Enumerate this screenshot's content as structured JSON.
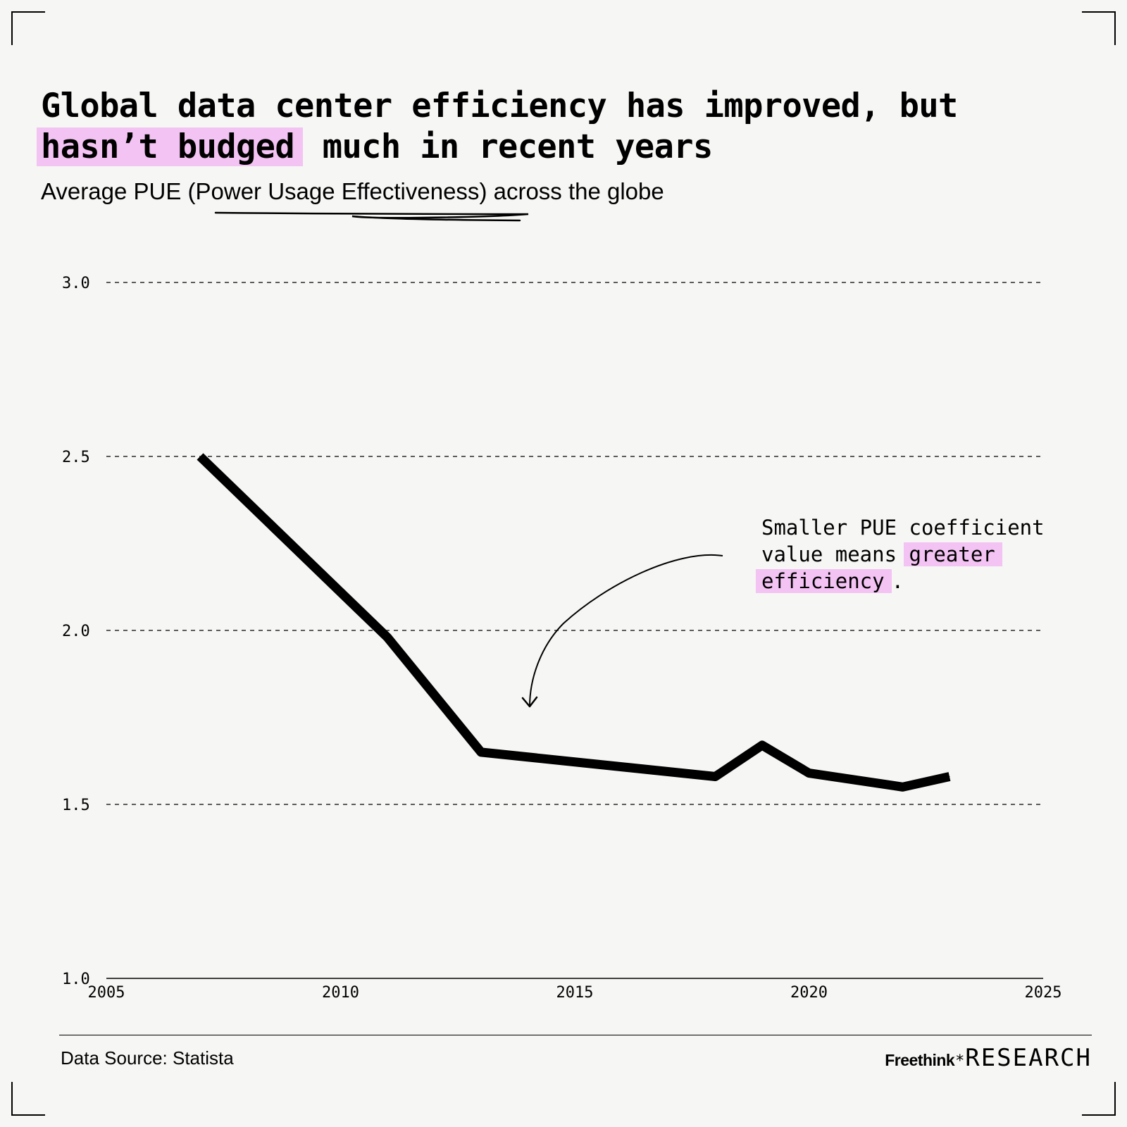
{
  "title": {
    "line1": "Global data center efficiency has improved, but",
    "highlight": "hasn’t budged",
    "rest": " much in recent years"
  },
  "subtitle": {
    "prefix": "Average PUE (",
    "term": "Power Usage Effectiveness",
    "suffix": ") across the globe"
  },
  "annotation": {
    "line1": "Smaller PUE coefficient",
    "line2_plain": "value means ",
    "highlight_1": "greater",
    "highlight_2": "efficiency",
    "end": "."
  },
  "colors": {
    "highlight": "#f3c3f3",
    "line": "#000000",
    "background": "#f6f6f4"
  },
  "footer": {
    "source": "Data Source: Statista",
    "brand_left": "Freethink",
    "brand_star": "*",
    "brand_right": "RESEARCH"
  },
  "chart_data": {
    "type": "line",
    "title": "Global data center efficiency has improved, but hasn’t budged much in recent years",
    "subtitle": "Average PUE (Power Usage Effectiveness) across the globe",
    "xlabel": "",
    "ylabel": "",
    "xlim": [
      2005,
      2025
    ],
    "ylim": [
      1.0,
      3.0
    ],
    "xticks": [
      "2005",
      "2010",
      "2015",
      "2020",
      "2025"
    ],
    "yticks": [
      "1.0",
      "1.5",
      "2.0",
      "2.5",
      "3.0"
    ],
    "grid": "horizontal dashed",
    "series": [
      {
        "name": "Average PUE",
        "x": [
          2007,
          2011,
          2013,
          2018,
          2019,
          2020,
          2022,
          2023
        ],
        "values": [
          2.5,
          1.98,
          1.65,
          1.58,
          1.67,
          1.59,
          1.55,
          1.58
        ]
      }
    ]
  }
}
